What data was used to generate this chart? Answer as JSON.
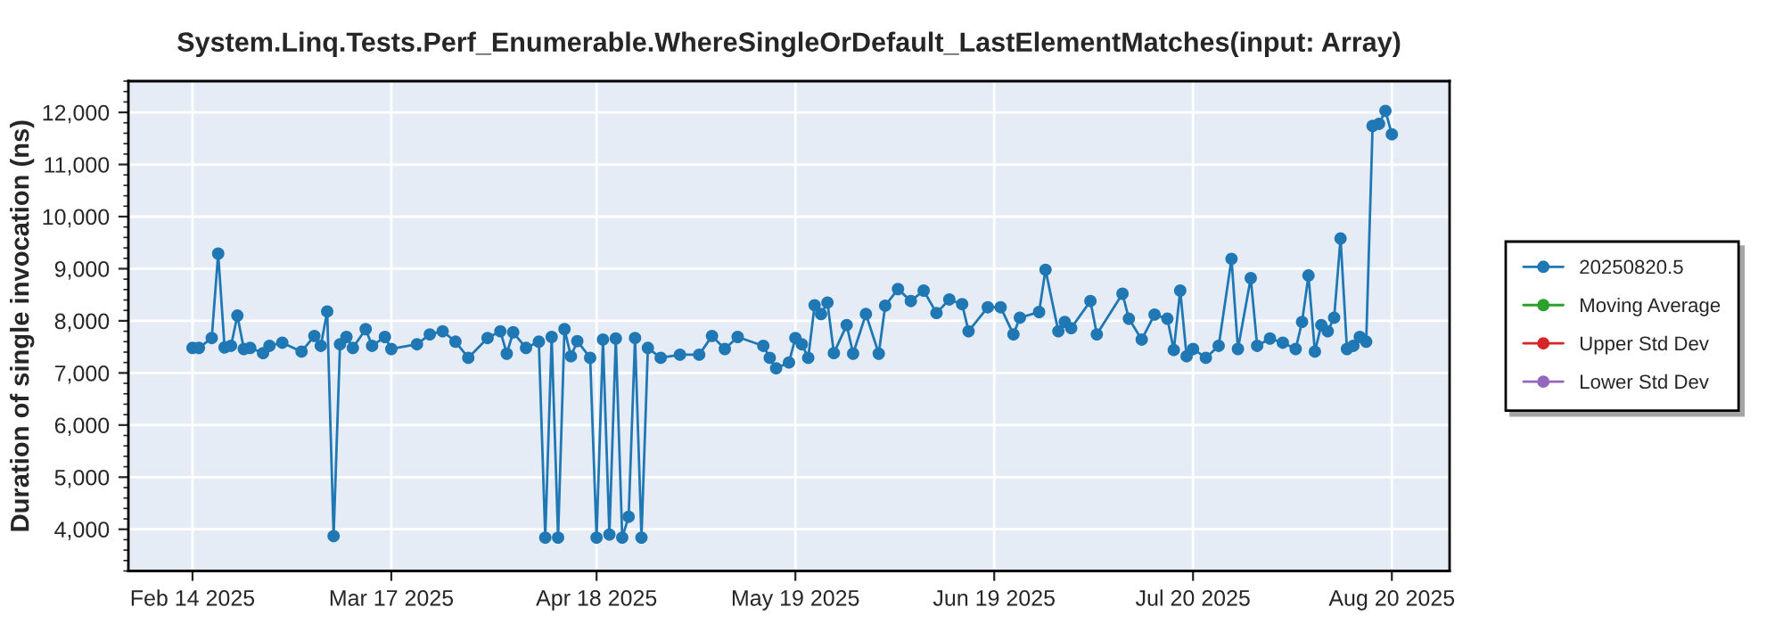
{
  "chart_data": {
    "type": "line",
    "title": "System.Linq.Tests.Perf_Enumerable.WhereSingleOrDefault_LastElementMatches(input: Array)",
    "ylabel": "Duration of single invocation (ns)",
    "series": [
      {
        "name": "20250820.5",
        "color": "#1f77b4",
        "x": [
          "2025-02-14",
          "2025-02-15",
          "2025-02-17",
          "2025-02-18",
          "2025-02-19",
          "2025-02-20",
          "2025-02-21",
          "2025-02-22",
          "2025-02-23",
          "2025-02-25",
          "2025-02-26",
          "2025-02-28",
          "2025-03-03",
          "2025-03-05",
          "2025-03-06",
          "2025-03-07",
          "2025-03-08",
          "2025-03-09",
          "2025-03-10",
          "2025-03-11",
          "2025-03-13",
          "2025-03-14",
          "2025-03-16",
          "2025-03-17",
          "2025-03-21",
          "2025-03-23",
          "2025-03-25",
          "2025-03-27",
          "2025-03-29",
          "2025-04-01",
          "2025-04-03",
          "2025-04-04",
          "2025-04-05",
          "2025-04-07",
          "2025-04-09",
          "2025-04-10",
          "2025-04-11",
          "2025-04-12",
          "2025-04-13",
          "2025-04-14",
          "2025-04-15",
          "2025-04-17",
          "2025-04-18",
          "2025-04-19",
          "2025-04-20",
          "2025-04-21",
          "2025-04-22",
          "2025-04-23",
          "2025-04-24",
          "2025-04-25",
          "2025-04-26",
          "2025-04-28",
          "2025-05-01",
          "2025-05-04",
          "2025-05-06",
          "2025-05-08",
          "2025-05-10",
          "2025-05-14",
          "2025-05-15",
          "2025-05-16",
          "2025-05-18",
          "2025-05-19",
          "2025-05-20",
          "2025-05-21",
          "2025-05-22",
          "2025-05-23",
          "2025-05-24",
          "2025-05-25",
          "2025-05-27",
          "2025-05-28",
          "2025-05-30",
          "2025-06-01",
          "2025-06-02",
          "2025-06-04",
          "2025-06-06",
          "2025-06-08",
          "2025-06-10",
          "2025-06-12",
          "2025-06-14",
          "2025-06-15",
          "2025-06-18",
          "2025-06-20",
          "2025-06-22",
          "2025-06-23",
          "2025-06-26",
          "2025-06-27",
          "2025-06-29",
          "2025-06-30",
          "2025-07-01",
          "2025-07-04",
          "2025-07-05",
          "2025-07-09",
          "2025-07-10",
          "2025-07-12",
          "2025-07-14",
          "2025-07-16",
          "2025-07-17",
          "2025-07-18",
          "2025-07-19",
          "2025-07-20",
          "2025-07-22",
          "2025-07-24",
          "2025-07-26",
          "2025-07-27",
          "2025-07-29",
          "2025-07-30",
          "2025-08-01",
          "2025-08-03",
          "2025-08-05",
          "2025-08-06",
          "2025-08-07",
          "2025-08-08",
          "2025-08-09",
          "2025-08-10",
          "2025-08-11",
          "2025-08-12",
          "2025-08-13",
          "2025-08-14",
          "2025-08-15",
          "2025-08-16",
          "2025-08-17",
          "2025-08-18",
          "2025-08-19",
          "2025-08-20"
        ],
        "values": [
          7480,
          7480,
          7670,
          9290,
          7490,
          7520,
          8100,
          7460,
          7480,
          7380,
          7520,
          7580,
          7410,
          7710,
          7520,
          8180,
          3870,
          7550,
          7690,
          7480,
          7840,
          7520,
          7690,
          7460,
          7550,
          7740,
          7800,
          7600,
          7290,
          7670,
          7800,
          7370,
          7780,
          7480,
          7600,
          3840,
          7690,
          3840,
          7840,
          7320,
          7610,
          7290,
          3840,
          7640,
          3900,
          7660,
          3840,
          4240,
          7670,
          3840,
          7480,
          7290,
          7350,
          7350,
          7710,
          7460,
          7690,
          7520,
          7290,
          7090,
          7200,
          7670,
          7550,
          7290,
          8300,
          8130,
          8350,
          7380,
          7920,
          7370,
          8130,
          7370,
          8290,
          8610,
          8380,
          8580,
          8150,
          8410,
          8320,
          7800,
          8260,
          8260,
          7740,
          8060,
          8170,
          8980,
          7800,
          7980,
          7860,
          8380,
          7740,
          8520,
          8040,
          7640,
          8120,
          8040,
          7440,
          8580,
          7320,
          7460,
          7290,
          7520,
          9190,
          7460,
          8820,
          7520,
          7660,
          7580,
          7460,
          7980,
          8870,
          7410,
          7920,
          7800,
          8060,
          9580,
          7460,
          7520,
          7690,
          7600,
          11740,
          11780,
          12030,
          11580
        ]
      },
      {
        "name": "Moving Average",
        "color": "#2ca02c"
      },
      {
        "name": "Upper Std Dev",
        "color": "#d62728"
      },
      {
        "name": "Lower Std Dev",
        "color": "#9467bd"
      }
    ],
    "xlim": [
      "2025-02-04",
      "2025-08-29"
    ],
    "xticks": [
      {
        "value": "2025-02-14",
        "label": "Feb 14 2025"
      },
      {
        "value": "2025-03-17",
        "label": "Mar 17 2025"
      },
      {
        "value": "2025-04-18",
        "label": "Apr 18 2025"
      },
      {
        "value": "2025-05-19",
        "label": "May 19 2025"
      },
      {
        "value": "2025-06-19",
        "label": "Jun 19 2025"
      },
      {
        "value": "2025-07-20",
        "label": "Jul 20 2025"
      },
      {
        "value": "2025-08-20",
        "label": "Aug 20 2025"
      }
    ],
    "ylim": [
      3200,
      12600
    ],
    "yticks": [
      {
        "value": 4000,
        "label": "4,000"
      },
      {
        "value": 5000,
        "label": "5,000"
      },
      {
        "value": 6000,
        "label": "6,000"
      },
      {
        "value": 7000,
        "label": "7,000"
      },
      {
        "value": 8000,
        "label": "8,000"
      },
      {
        "value": 9000,
        "label": "9,000"
      },
      {
        "value": 10000,
        "label": "10,000"
      },
      {
        "value": 11000,
        "label": "11,000"
      },
      {
        "value": 12000,
        "label": "12,000"
      }
    ],
    "grid": true,
    "legend": "right",
    "marker": "circle",
    "line_style": "solid"
  }
}
